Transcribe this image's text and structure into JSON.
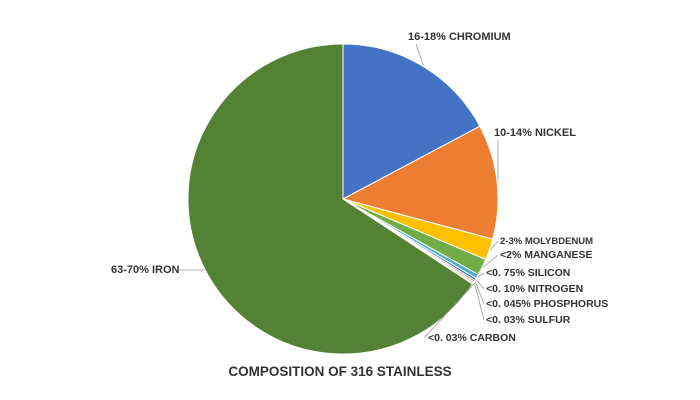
{
  "chart_data": {
    "type": "pie",
    "title": "COMPOSITION OF 316 STAINLESS",
    "start": "12 o'clock",
    "direction": "clockwise",
    "slices": [
      {
        "label": "16-18% CHROMIUM",
        "value": 17,
        "color": "#4472C4"
      },
      {
        "label": "10-14% NICKEL",
        "value": 12,
        "color": "#ED7D31"
      },
      {
        "label": "2-3% MOLYBDENUM",
        "value": 2.5,
        "color": "#FFC000"
      },
      {
        "label": "<2% MANGANESE",
        "value": 2,
        "color": "#70AD47"
      },
      {
        "label": "<0. 75% SILICON",
        "value": 0.75,
        "color": "#4BACC6"
      },
      {
        "label": "<0. 10% NITROGEN",
        "value": 0.1,
        "color": "#2E75B6"
      },
      {
        "label": "<0. 045% PHOSPHORUS",
        "value": 0.045,
        "color": "#9E480E"
      },
      {
        "label": "<0. 03% SULFUR",
        "value": 0.03,
        "color": "#636363"
      },
      {
        "label": "<0. 03% CARBON",
        "value": 0.03,
        "color": "#997300"
      },
      {
        "label": "63-70% IRON",
        "value": 65.5,
        "color": "#548235"
      }
    ]
  }
}
